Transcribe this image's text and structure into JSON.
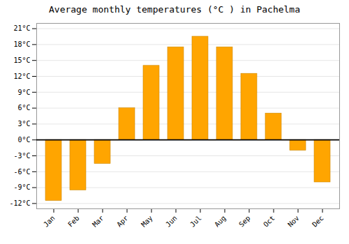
{
  "chart_data": {
    "type": "bar",
    "title": "Average monthly temperatures (°C ) in Pachelma",
    "categories": [
      "Jan",
      "Feb",
      "Mar",
      "Apr",
      "May",
      "Jun",
      "Jul",
      "Aug",
      "Sep",
      "Oct",
      "Nov",
      "Dec"
    ],
    "values": [
      -11.5,
      -9.5,
      -4.5,
      6.0,
      14.0,
      17.5,
      19.5,
      17.5,
      12.5,
      5.0,
      -2.0,
      -8.0
    ],
    "color": "#FFA500",
    "ylim": [
      -13,
      22
    ],
    "yticks": [
      {
        "value": -12,
        "label": "-12°C"
      },
      {
        "value": -9,
        "label": "-9°C"
      },
      {
        "value": -6,
        "label": "-6°C"
      },
      {
        "value": -3,
        "label": "-3°C"
      },
      {
        "value": 0,
        "label": "0°C"
      },
      {
        "value": 3,
        "label": "3°C"
      },
      {
        "value": 6,
        "label": "6°C"
      },
      {
        "value": 9,
        "label": "9°C"
      },
      {
        "value": 12,
        "label": "12°C"
      },
      {
        "value": 15,
        "label": "15°C"
      },
      {
        "value": 18,
        "label": "18°C"
      },
      {
        "value": 21,
        "label": "21°C"
      }
    ],
    "grid": true
  }
}
